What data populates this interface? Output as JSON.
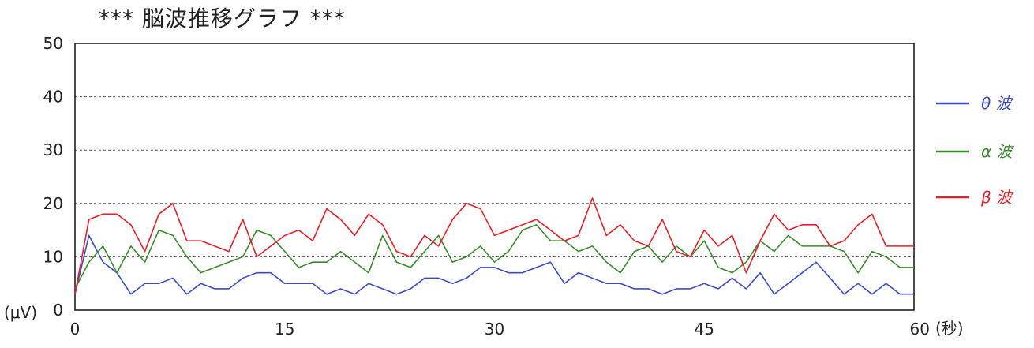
{
  "chart_data": {
    "type": "line",
    "title": "*** 脳波推移グラフ ***",
    "xlabel": "(秒)",
    "ylabel": "(μV)",
    "xlim": [
      0,
      60
    ],
    "ylim": [
      0,
      50
    ],
    "x_ticks": [
      "0",
      "15",
      "30",
      "45",
      "60"
    ],
    "y_ticks": [
      "0",
      "10",
      "20",
      "30",
      "40",
      "50"
    ],
    "grid": "horizontal dashed",
    "legend_position": "right",
    "x": [
      0,
      1,
      2,
      3,
      4,
      5,
      6,
      7,
      8,
      9,
      10,
      11,
      12,
      13,
      14,
      15,
      16,
      17,
      18,
      19,
      20,
      21,
      22,
      23,
      24,
      25,
      26,
      27,
      28,
      29,
      30,
      31,
      32,
      33,
      34,
      35,
      36,
      37,
      38,
      39,
      40,
      41,
      42,
      43,
      44,
      45,
      46,
      47,
      48,
      49,
      50,
      51,
      52,
      53,
      54,
      55,
      56,
      57,
      58,
      59,
      60
    ],
    "series": [
      {
        "name": "θ 波",
        "color": "#3b4cc0",
        "values": [
          3,
          14,
          9,
          7,
          3,
          5,
          5,
          6,
          3,
          5,
          4,
          4,
          6,
          7,
          7,
          5,
          5,
          5,
          3,
          4,
          3,
          5,
          4,
          3,
          4,
          6,
          6,
          5,
          6,
          8,
          8,
          7,
          7,
          8,
          9,
          5,
          7,
          6,
          5,
          5,
          4,
          4,
          3,
          4,
          4,
          5,
          4,
          6,
          4,
          7,
          3,
          5,
          7,
          9,
          6,
          3,
          5,
          3,
          5,
          3,
          3
        ]
      },
      {
        "name": "α 波",
        "color": "#3a8a2e",
        "values": [
          4,
          9,
          12,
          7,
          12,
          9,
          15,
          14,
          10,
          7,
          8,
          9,
          10,
          15,
          14,
          11,
          8,
          9,
          9,
          11,
          9,
          7,
          14,
          9,
          8,
          11,
          14,
          9,
          10,
          12,
          9,
          11,
          15,
          16,
          13,
          13,
          11,
          12,
          9,
          7,
          11,
          12,
          9,
          12,
          10,
          13,
          8,
          7,
          9,
          13,
          11,
          14,
          12,
          12,
          12,
          11,
          7,
          11,
          10,
          8,
          8
        ]
      },
      {
        "name": "β 波",
        "color": "#e0202a",
        "values": [
          3,
          17,
          18,
          18,
          16,
          11,
          18,
          20,
          13,
          13,
          12,
          11,
          17,
          10,
          12,
          14,
          15,
          13,
          19,
          17,
          14,
          18,
          16,
          11,
          10,
          14,
          12,
          17,
          20,
          19,
          14,
          15,
          16,
          17,
          15,
          13,
          14,
          21,
          14,
          16,
          13,
          12,
          17,
          11,
          10,
          15,
          12,
          14,
          7,
          13,
          18,
          15,
          16,
          16,
          12,
          13,
          16,
          18,
          12,
          12,
          12
        ]
      }
    ]
  }
}
